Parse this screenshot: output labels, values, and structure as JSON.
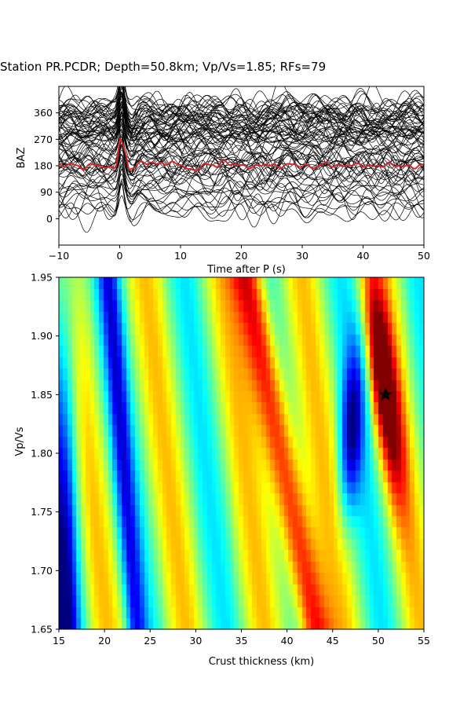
{
  "figure": {
    "title": "Station PR.PCDR; Depth=50.8km; Vp/Vs=1.85; RFs=79"
  },
  "chart_data": [
    {
      "type": "line",
      "xlabel": "Time after P (s)",
      "ylabel": "BAZ",
      "xlim": [
        -10,
        50
      ],
      "ylim": [
        -90,
        450
      ],
      "xticks": [
        -10,
        0,
        10,
        20,
        30,
        40,
        50
      ],
      "yticks": [
        0,
        90,
        180,
        270,
        360
      ],
      "grid": false,
      "trace_color": "#000000",
      "stack_color": "#d62728",
      "n_traces": 79,
      "baz_offsets_deg": [
        18,
        28,
        38,
        47,
        58,
        67,
        75,
        83,
        90,
        98,
        107,
        118,
        125,
        133,
        140,
        148,
        155,
        160,
        165,
        170,
        175,
        180,
        184,
        188,
        192,
        196,
        200,
        204,
        208,
        212,
        220,
        228,
        236,
        243,
        250,
        256,
        262,
        266,
        270,
        273,
        276,
        279,
        282,
        285,
        288,
        291,
        294,
        297,
        300,
        303,
        306,
        309,
        312,
        315,
        318,
        321,
        324,
        327,
        330,
        333,
        336,
        339,
        342,
        345,
        348,
        351,
        354,
        357,
        360,
        363,
        366,
        369,
        372,
        375,
        380,
        385,
        390,
        395,
        400
      ],
      "stack": {
        "baz_offset_deg": 180,
        "t": [
          -10,
          -8,
          -6,
          -4,
          -2,
          -1,
          -0.5,
          0,
          0.5,
          1,
          1.5,
          2,
          3,
          4,
          5,
          6,
          7,
          8,
          10,
          12,
          14,
          16,
          17,
          18,
          20,
          22,
          24,
          26,
          28,
          30,
          32,
          34,
          36,
          38,
          40,
          42,
          44,
          46,
          48,
          50
        ],
        "amp": [
          0,
          5,
          -8,
          6,
          -10,
          -5,
          10,
          90,
          70,
          40,
          -15,
          -8,
          6,
          10,
          12,
          5,
          8,
          10,
          5,
          -20,
          5,
          0,
          15,
          8,
          0,
          -5,
          6,
          -4,
          5,
          0,
          -5,
          8,
          -3,
          4,
          2,
          -3,
          5,
          0,
          -4,
          0
        ]
      }
    },
    {
      "type": "heatmap",
      "xlabel": "Crust thickness (km)",
      "ylabel": "Vp/Vs",
      "xlim": [
        15,
        55
      ],
      "ylim": [
        1.65,
        1.95
      ],
      "xticks": [
        15,
        20,
        25,
        30,
        35,
        40,
        45,
        50,
        55
      ],
      "yticks": [
        1.65,
        1.7,
        1.75,
        1.8,
        1.85,
        1.9,
        1.95
      ],
      "colormap": "jet",
      "grid": false,
      "best_fit": {
        "H_km": 50.8,
        "Vp_Vs": 1.85,
        "marker": "star",
        "color": "#000000"
      }
    }
  ]
}
